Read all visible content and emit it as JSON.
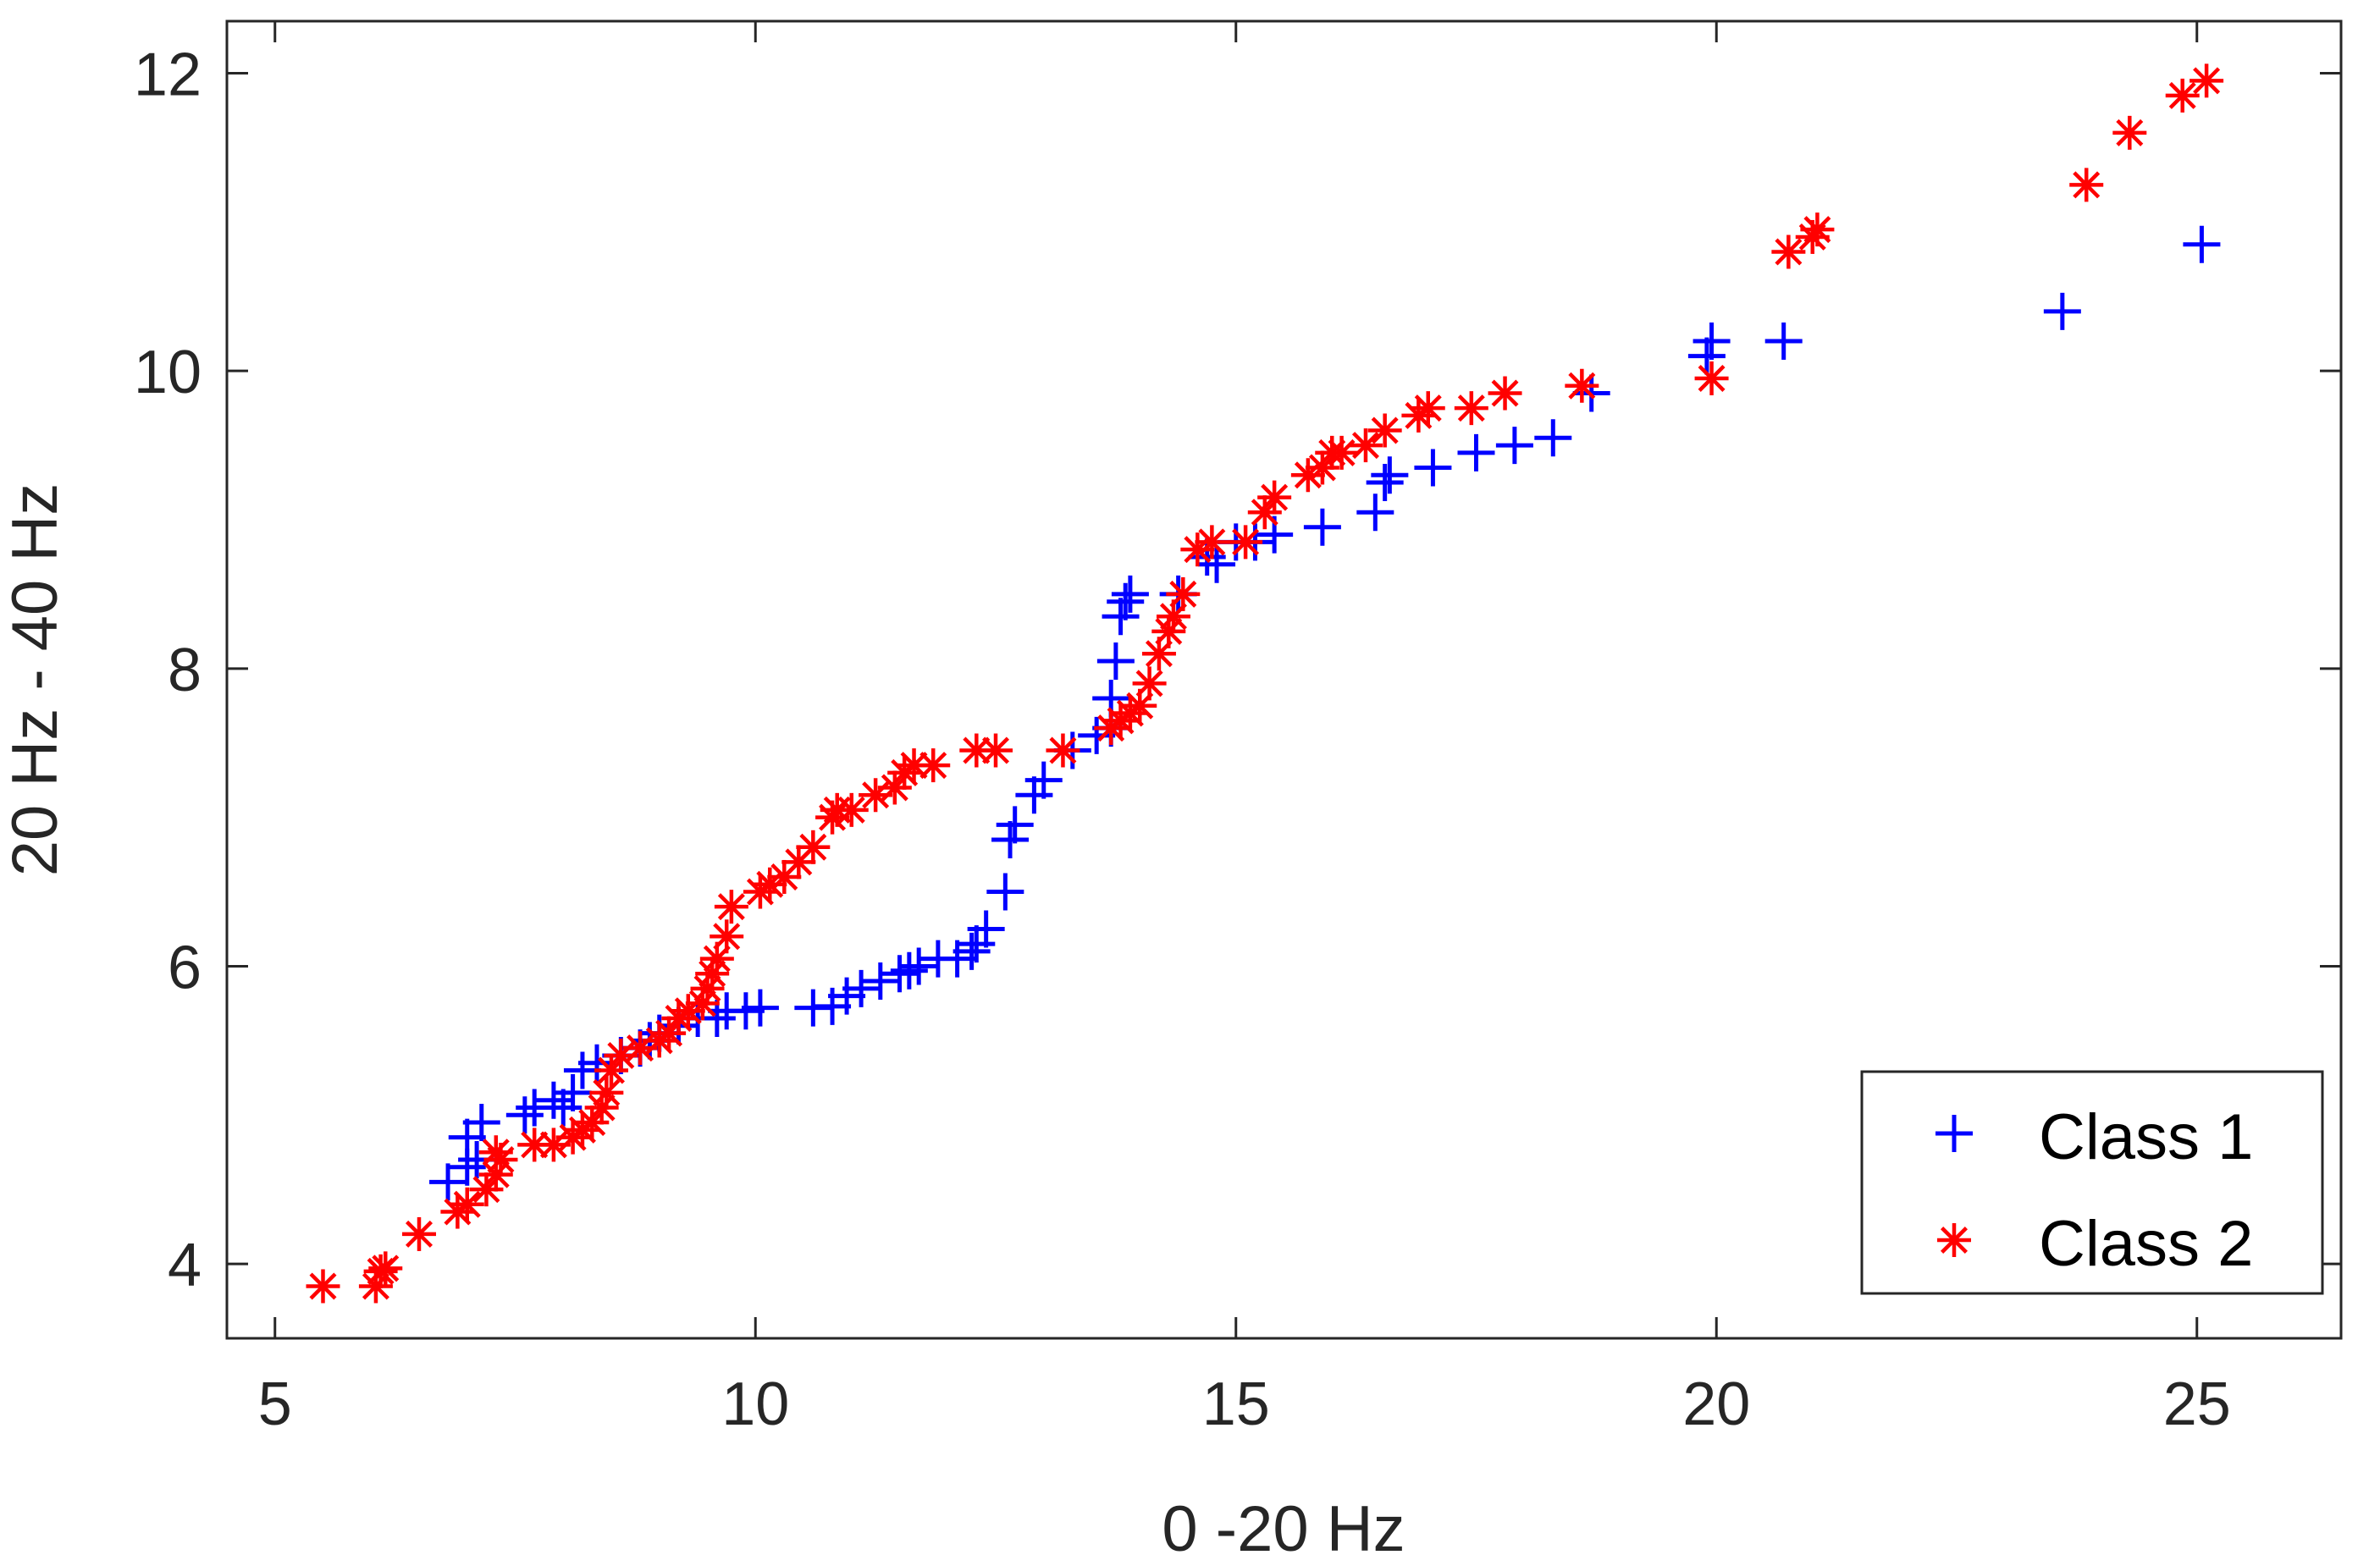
{
  "chart_data": {
    "type": "scatter",
    "title": "",
    "xlabel": "0 -20 Hz",
    "ylabel": "20 Hz - 40 Hz",
    "xlim": [
      4.5,
      26.5
    ],
    "ylim": [
      3.5,
      12.35
    ],
    "xticks": [
      5,
      10,
      15,
      20,
      25
    ],
    "yticks": [
      4,
      6,
      8,
      10,
      12
    ],
    "grid": false,
    "legend_position": "bottom-right",
    "series": [
      {
        "name": "Class 1",
        "marker": "plus",
        "color": "#0000ff",
        "points": [
          [
            6.8,
            4.55
          ],
          [
            7.0,
            4.65
          ],
          [
            7.0,
            4.85
          ],
          [
            7.1,
            4.7
          ],
          [
            7.15,
            4.95
          ],
          [
            7.6,
            5.0
          ],
          [
            7.7,
            5.05
          ],
          [
            7.9,
            5.1
          ],
          [
            8.0,
            5.05
          ],
          [
            8.1,
            5.15
          ],
          [
            8.2,
            5.3
          ],
          [
            8.35,
            5.35
          ],
          [
            8.6,
            5.4
          ],
          [
            8.8,
            5.45
          ],
          [
            8.9,
            5.5
          ],
          [
            9.0,
            5.55
          ],
          [
            9.2,
            5.6
          ],
          [
            9.4,
            5.65
          ],
          [
            9.6,
            5.65
          ],
          [
            9.7,
            5.7
          ],
          [
            9.9,
            5.7
          ],
          [
            10.05,
            5.72
          ],
          [
            10.6,
            5.72
          ],
          [
            10.8,
            5.73
          ],
          [
            10.95,
            5.8
          ],
          [
            11.1,
            5.85
          ],
          [
            11.3,
            5.9
          ],
          [
            11.5,
            5.95
          ],
          [
            11.6,
            5.97
          ],
          [
            11.7,
            6.0
          ],
          [
            11.9,
            6.05
          ],
          [
            12.1,
            6.05
          ],
          [
            12.25,
            6.1
          ],
          [
            12.3,
            6.15
          ],
          [
            12.4,
            6.25
          ],
          [
            12.6,
            6.5
          ],
          [
            12.65,
            6.85
          ],
          [
            12.7,
            6.95
          ],
          [
            12.9,
            7.15
          ],
          [
            13.0,
            7.25
          ],
          [
            13.3,
            7.45
          ],
          [
            13.55,
            7.55
          ],
          [
            13.7,
            7.6
          ],
          [
            13.7,
            7.8
          ],
          [
            13.75,
            8.05
          ],
          [
            13.8,
            8.35
          ],
          [
            13.85,
            8.45
          ],
          [
            13.9,
            8.5
          ],
          [
            14.4,
            8.5
          ],
          [
            14.7,
            8.75
          ],
          [
            14.8,
            8.7
          ],
          [
            15.0,
            8.85
          ],
          [
            15.2,
            8.85
          ],
          [
            15.4,
            8.9
          ],
          [
            15.9,
            8.95
          ],
          [
            16.45,
            9.05
          ],
          [
            16.55,
            9.25
          ],
          [
            16.6,
            9.3
          ],
          [
            17.05,
            9.35
          ],
          [
            17.5,
            9.45
          ],
          [
            17.9,
            9.5
          ],
          [
            18.3,
            9.55
          ],
          [
            18.7,
            9.85
          ],
          [
            19.9,
            10.1
          ],
          [
            19.95,
            10.2
          ],
          [
            20.7,
            10.2
          ],
          [
            23.6,
            10.4
          ],
          [
            25.05,
            10.85
          ]
        ]
      },
      {
        "name": "Class 2",
        "marker": "asterisk",
        "color": "#ff0000",
        "points": [
          [
            5.5,
            3.85
          ],
          [
            6.05,
            3.85
          ],
          [
            6.1,
            3.95
          ],
          [
            6.15,
            3.97
          ],
          [
            6.5,
            4.2
          ],
          [
            6.9,
            4.35
          ],
          [
            7.0,
            4.4
          ],
          [
            7.2,
            4.5
          ],
          [
            7.3,
            4.6
          ],
          [
            7.35,
            4.7
          ],
          [
            7.3,
            4.75
          ],
          [
            7.7,
            4.8
          ],
          [
            7.9,
            4.8
          ],
          [
            8.1,
            4.85
          ],
          [
            8.2,
            4.9
          ],
          [
            8.3,
            4.95
          ],
          [
            8.4,
            5.05
          ],
          [
            8.45,
            5.15
          ],
          [
            8.5,
            5.3
          ],
          [
            8.6,
            5.4
          ],
          [
            8.8,
            5.45
          ],
          [
            9.0,
            5.5
          ],
          [
            9.1,
            5.55
          ],
          [
            9.2,
            5.65
          ],
          [
            9.3,
            5.7
          ],
          [
            9.45,
            5.75
          ],
          [
            9.5,
            5.85
          ],
          [
            9.55,
            5.95
          ],
          [
            9.6,
            6.05
          ],
          [
            9.7,
            6.2
          ],
          [
            9.75,
            6.4
          ],
          [
            10.05,
            6.5
          ],
          [
            10.15,
            6.55
          ],
          [
            10.3,
            6.6
          ],
          [
            10.45,
            6.7
          ],
          [
            10.6,
            6.8
          ],
          [
            10.8,
            7.0
          ],
          [
            10.85,
            7.05
          ],
          [
            11.0,
            7.05
          ],
          [
            11.25,
            7.15
          ],
          [
            11.45,
            7.2
          ],
          [
            11.55,
            7.3
          ],
          [
            11.65,
            7.35
          ],
          [
            11.85,
            7.35
          ],
          [
            12.3,
            7.45
          ],
          [
            12.5,
            7.45
          ],
          [
            13.2,
            7.45
          ],
          [
            13.7,
            7.6
          ],
          [
            13.8,
            7.65
          ],
          [
            13.9,
            7.7
          ],
          [
            14.0,
            7.75
          ],
          [
            14.1,
            7.9
          ],
          [
            14.2,
            8.1
          ],
          [
            14.3,
            8.25
          ],
          [
            14.35,
            8.35
          ],
          [
            14.45,
            8.5
          ],
          [
            14.6,
            8.8
          ],
          [
            14.75,
            8.85
          ],
          [
            15.1,
            8.85
          ],
          [
            15.3,
            9.05
          ],
          [
            15.4,
            9.15
          ],
          [
            15.75,
            9.3
          ],
          [
            15.9,
            9.35
          ],
          [
            16.0,
            9.45
          ],
          [
            16.1,
            9.45
          ],
          [
            16.35,
            9.5
          ],
          [
            16.55,
            9.6
          ],
          [
            16.9,
            9.7
          ],
          [
            17.0,
            9.75
          ],
          [
            17.45,
            9.75
          ],
          [
            17.8,
            9.85
          ],
          [
            18.6,
            9.9
          ],
          [
            19.95,
            9.95
          ],
          [
            20.75,
            10.8
          ],
          [
            21.0,
            10.9
          ],
          [
            21.05,
            10.95
          ],
          [
            23.85,
            11.25
          ],
          [
            24.3,
            11.6
          ],
          [
            24.85,
            11.85
          ],
          [
            25.1,
            11.95
          ]
        ]
      }
    ]
  }
}
